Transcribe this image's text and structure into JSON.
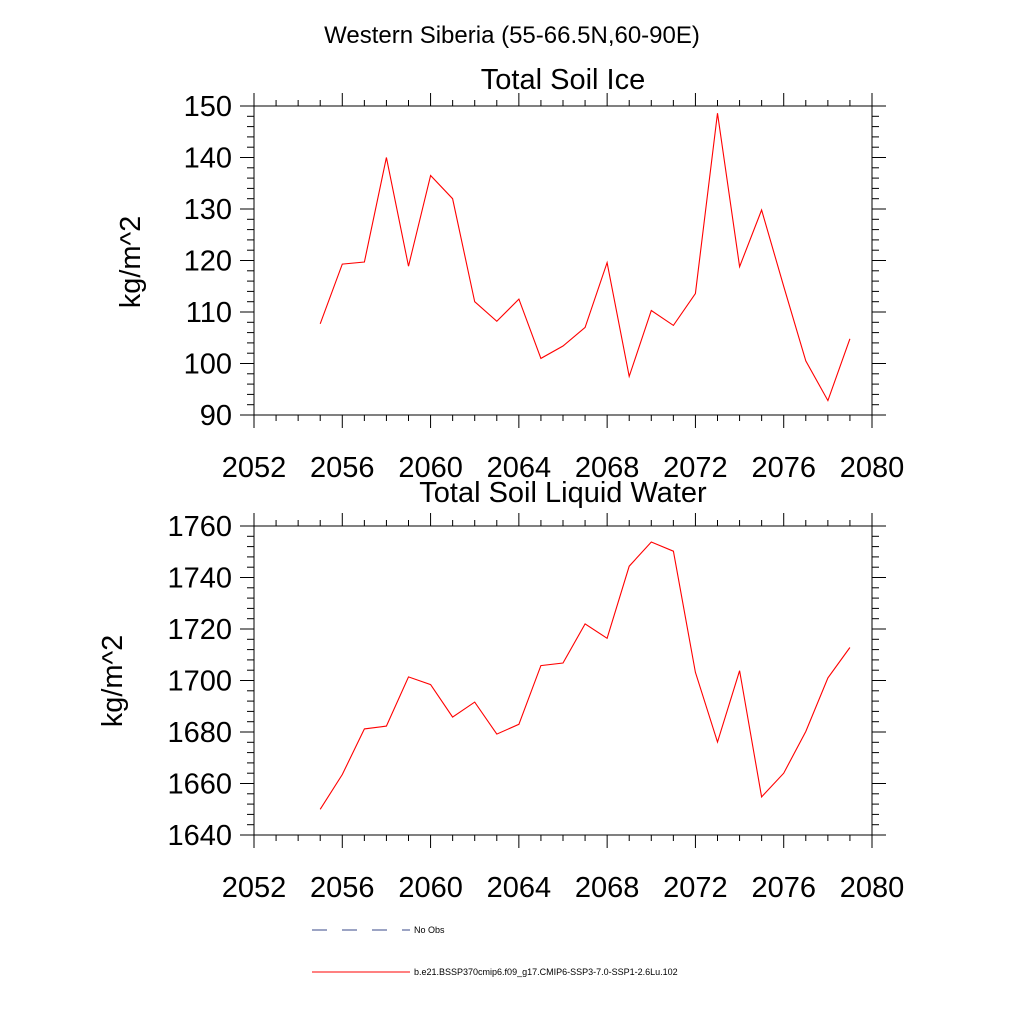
{
  "figure_title": "Western Siberia (55-66.5N,60-90E)",
  "chart_data": [
    {
      "type": "line",
      "title": "Total Soil Ice",
      "xlabel": "",
      "ylabel": "kg/m^2",
      "xlim": [
        2052,
        2080
      ],
      "ylim": [
        90,
        150
      ],
      "x_ticks": [
        2052,
        2056,
        2060,
        2064,
        2068,
        2072,
        2076,
        2080
      ],
      "y_ticks": [
        90,
        100,
        110,
        120,
        130,
        140,
        150
      ],
      "grid": false,
      "series": [
        {
          "name": "b.e21.BSSP370cmip6.f09_g17.CMIP6-SSP3-7.0-SSP1-2.6Lu.102",
          "color": "#ff0000",
          "x": [
            2055,
            2056,
            2057,
            2058,
            2059,
            2060,
            2061,
            2062,
            2063,
            2064,
            2065,
            2066,
            2067,
            2068,
            2069,
            2070,
            2071,
            2072,
            2073,
            2074,
            2075,
            2076,
            2077,
            2078,
            2079
          ],
          "y": [
            107.7,
            119.3,
            119.7,
            140.0,
            118.9,
            136.5,
            132.0,
            112.0,
            108.2,
            112.5,
            101.0,
            103.4,
            107.0,
            119.6,
            97.5,
            110.3,
            107.4,
            113.6,
            148.6,
            118.8,
            129.8,
            115.0,
            100.5,
            92.8,
            104.8
          ]
        }
      ]
    },
    {
      "type": "line",
      "title": "Total Soil Liquid Water",
      "xlabel": "",
      "ylabel": "kg/m^2",
      "xlim": [
        2052,
        2080
      ],
      "ylim": [
        1640,
        1760
      ],
      "x_ticks": [
        2052,
        2056,
        2060,
        2064,
        2068,
        2072,
        2076,
        2080
      ],
      "y_ticks": [
        1640,
        1660,
        1680,
        1700,
        1720,
        1740,
        1760
      ],
      "grid": false,
      "series": [
        {
          "name": "b.e21.BSSP370cmip6.f09_g17.CMIP6-SSP3-7.0-SSP1-2.6Lu.102",
          "color": "#ff0000",
          "x": [
            2055,
            2056,
            2057,
            2058,
            2059,
            2060,
            2061,
            2062,
            2063,
            2064,
            2065,
            2066,
            2067,
            2068,
            2069,
            2070,
            2071,
            2072,
            2073,
            2074,
            2075,
            2076,
            2077,
            2078,
            2079
          ],
          "y": [
            1650.0,
            1663.5,
            1681.2,
            1682.3,
            1701.4,
            1698.4,
            1685.8,
            1691.6,
            1679.2,
            1683.0,
            1705.8,
            1706.8,
            1722.0,
            1716.4,
            1744.4,
            1753.8,
            1750.2,
            1703.2,
            1676.1,
            1703.8,
            1654.8,
            1664.0,
            1680.2,
            1701.0,
            1712.8
          ]
        }
      ]
    }
  ],
  "legend": {
    "placement": "bottom",
    "items": [
      {
        "label": "No Obs",
        "style": "dashed",
        "color": "#3a4a8a"
      },
      {
        "label": "b.e21.BSSP370cmip6.f09_g17.CMIP6-SSP3-7.0-SSP1-2.6Lu.102",
        "style": "solid",
        "color": "#ff0000"
      }
    ]
  }
}
